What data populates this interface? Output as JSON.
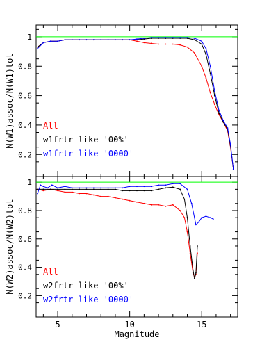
{
  "chart_data": [
    {
      "type": "line",
      "title": "",
      "xlabel": "",
      "ylabel": "N(W1)assoc/N(W1)tot",
      "xlim": [
        3.5,
        17.5
      ],
      "ylim": [
        0.05,
        1.08
      ],
      "xticks": [
        5,
        10,
        15
      ],
      "yticks": [
        0.2,
        0.4,
        0.6,
        0.8,
        1
      ],
      "ytick_labels": [
        "0.2",
        "0.4",
        "0.6",
        "0.8",
        "1"
      ],
      "reference_line": {
        "y": 1.0,
        "color": "#00ff00"
      },
      "legend": {
        "placement": "middle-left",
        "entries": [
          {
            "label": "All",
            "color": "#ff0000"
          },
          {
            "label": "w1frtr like '00%'",
            "color": "#000000"
          },
          {
            "label": "w1frtr like '0000'",
            "color": "#0000ff"
          }
        ]
      },
      "series": [
        {
          "color": "#ff0000",
          "x": [
            3.6,
            4.0,
            4.5,
            5.0,
            5.5,
            6.0,
            6.5,
            7.0,
            7.5,
            8.0,
            8.5,
            9.0,
            9.5,
            10.0,
            10.5,
            11.0,
            11.5,
            12.0,
            12.5,
            13.0,
            13.5,
            14.0,
            14.5,
            15.0,
            15.3,
            15.6,
            15.9,
            16.2,
            16.5,
            16.8,
            17.0,
            17.2
          ],
          "y": [
            0.93,
            0.96,
            0.97,
            0.97,
            0.98,
            0.98,
            0.98,
            0.98,
            0.98,
            0.98,
            0.98,
            0.98,
            0.98,
            0.98,
            0.97,
            0.96,
            0.955,
            0.95,
            0.95,
            0.95,
            0.945,
            0.93,
            0.89,
            0.8,
            0.72,
            0.62,
            0.54,
            0.47,
            0.42,
            0.36,
            0.25,
            0.1
          ]
        },
        {
          "color": "#000000",
          "x": [
            3.6,
            4.0,
            4.5,
            5.0,
            5.5,
            6.0,
            6.5,
            7.0,
            7.5,
            8.0,
            8.5,
            9.0,
            9.5,
            10.0,
            10.5,
            11.0,
            11.5,
            12.0,
            12.5,
            13.0,
            13.5,
            14.0,
            14.5,
            15.0,
            15.3,
            15.6,
            15.9,
            16.2,
            16.5,
            16.8,
            17.0,
            17.2
          ],
          "y": [
            0.93,
            0.96,
            0.97,
            0.97,
            0.98,
            0.98,
            0.98,
            0.98,
            0.98,
            0.98,
            0.98,
            0.98,
            0.98,
            0.98,
            0.98,
            0.985,
            0.99,
            0.99,
            0.99,
            0.99,
            0.99,
            0.99,
            0.98,
            0.95,
            0.88,
            0.75,
            0.6,
            0.48,
            0.42,
            0.37,
            0.26,
            0.1
          ]
        },
        {
          "color": "#0000ff",
          "x": [
            3.6,
            4.0,
            4.5,
            5.0,
            5.5,
            6.0,
            6.5,
            7.0,
            7.5,
            8.0,
            8.5,
            9.0,
            9.5,
            10.0,
            10.5,
            11.0,
            11.5,
            12.0,
            12.5,
            13.0,
            13.5,
            14.0,
            14.5,
            15.0,
            15.3,
            15.6,
            15.9,
            16.2,
            16.5,
            16.8,
            17.0,
            17.2
          ],
          "y": [
            0.92,
            0.96,
            0.97,
            0.97,
            0.98,
            0.98,
            0.98,
            0.98,
            0.98,
            0.98,
            0.98,
            0.98,
            0.98,
            0.98,
            0.985,
            0.99,
            0.995,
            0.995,
            0.995,
            0.995,
            0.995,
            0.995,
            0.99,
            0.97,
            0.92,
            0.8,
            0.63,
            0.5,
            0.43,
            0.38,
            0.27,
            0.1
          ]
        }
      ]
    },
    {
      "type": "line",
      "title": "",
      "xlabel": "Magnitude",
      "ylabel": "N(W2)assoc/N(W2)tot",
      "xlim": [
        3.5,
        17.5
      ],
      "ylim": [
        0.05,
        1.04
      ],
      "xticks": [
        5,
        10,
        15
      ],
      "yticks": [
        0.2,
        0.4,
        0.6,
        0.8,
        1
      ],
      "ytick_labels": [
        "0.2",
        "0.4",
        "0.6",
        "0.8",
        "1"
      ],
      "reference_line": {
        "y": 1.0,
        "color": "#00ff00"
      },
      "legend": {
        "placement": "bottom-left",
        "entries": [
          {
            "label": "All",
            "color": "#ff0000"
          },
          {
            "label": "w2frtr like '00%'",
            "color": "#000000"
          },
          {
            "label": "w2frtr like '0000'",
            "color": "#0000ff"
          }
        ]
      },
      "series": [
        {
          "color": "#ff0000",
          "x": [
            3.6,
            4.0,
            4.5,
            5.0,
            5.5,
            6.0,
            6.5,
            7.0,
            7.5,
            8.0,
            8.5,
            9.0,
            9.5,
            10.0,
            10.5,
            11.0,
            11.5,
            12.0,
            12.5,
            13.0,
            13.5,
            13.8,
            14.0,
            14.2,
            14.4,
            14.5,
            14.6,
            14.7
          ],
          "y": [
            0.95,
            0.94,
            0.95,
            0.94,
            0.93,
            0.93,
            0.92,
            0.92,
            0.91,
            0.9,
            0.9,
            0.89,
            0.88,
            0.87,
            0.86,
            0.85,
            0.84,
            0.84,
            0.83,
            0.84,
            0.8,
            0.75,
            0.65,
            0.5,
            0.36,
            0.33,
            0.35,
            0.5
          ]
        },
        {
          "color": "#000000",
          "x": [
            3.6,
            4.0,
            4.5,
            5.0,
            5.5,
            6.0,
            6.5,
            7.0,
            7.5,
            8.0,
            8.5,
            9.0,
            9.5,
            10.0,
            10.5,
            11.0,
            11.5,
            12.0,
            12.5,
            13.0,
            13.5,
            13.8,
            14.0,
            14.2,
            14.4,
            14.5,
            14.6,
            14.7
          ],
          "y": [
            0.95,
            0.95,
            0.95,
            0.95,
            0.95,
            0.95,
            0.95,
            0.95,
            0.95,
            0.95,
            0.95,
            0.95,
            0.94,
            0.94,
            0.94,
            0.94,
            0.94,
            0.95,
            0.96,
            0.965,
            0.95,
            0.88,
            0.75,
            0.55,
            0.38,
            0.32,
            0.36,
            0.55
          ]
        },
        {
          "color": "#0000ff",
          "x": [
            3.6,
            3.8,
            4.0,
            4.3,
            4.6,
            5.0,
            5.5,
            6.0,
            6.5,
            7.0,
            7.5,
            8.0,
            8.5,
            9.0,
            9.5,
            10.0,
            10.5,
            11.0,
            11.5,
            12.0,
            12.5,
            13.0,
            13.5,
            14.0,
            14.3,
            14.6,
            14.8,
            15.0,
            15.3,
            15.6,
            15.8
          ],
          "y": [
            0.92,
            0.98,
            0.97,
            0.96,
            0.98,
            0.96,
            0.97,
            0.96,
            0.96,
            0.96,
            0.96,
            0.96,
            0.96,
            0.96,
            0.96,
            0.97,
            0.97,
            0.97,
            0.97,
            0.98,
            0.98,
            0.99,
            0.99,
            0.95,
            0.85,
            0.7,
            0.72,
            0.75,
            0.76,
            0.75,
            0.74
          ]
        }
      ]
    }
  ]
}
